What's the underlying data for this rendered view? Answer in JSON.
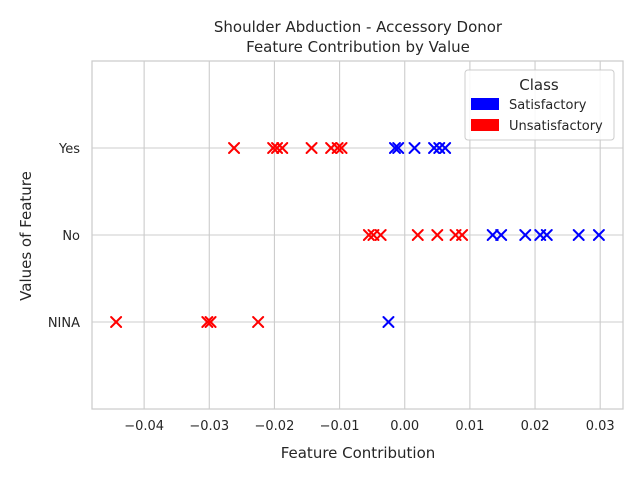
{
  "chart_data": {
    "type": "scatter",
    "title_line1": "Shoulder Abduction - Accessory Donor",
    "title_line2": "Feature Contribution by Value",
    "xlabel": "Feature Contribution",
    "ylabel": "Values of Feature",
    "xlim": [
      -0.048,
      0.0335
    ],
    "xticks": [
      -0.04,
      -0.03,
      -0.02,
      -0.01,
      0.0,
      0.01,
      0.02,
      0.03
    ],
    "xtick_labels": [
      "−0.04",
      "−0.03",
      "−0.02",
      "−0.01",
      "0.00",
      "0.01",
      "0.02",
      "0.03"
    ],
    "categories": [
      "NINA",
      "No",
      "Yes"
    ],
    "ylim": [
      -1,
      3
    ],
    "grid": true,
    "marker": "x",
    "legend": {
      "title": "Class",
      "placement": "top-right",
      "entries": [
        {
          "name": "Satisfactory",
          "color": "#0000ff"
        },
        {
          "name": "Unsatisfactory",
          "color": "#ff0000"
        }
      ]
    },
    "series": [
      {
        "name": "Satisfactory",
        "color": "#0000ff",
        "points": [
          {
            "x": -0.0015,
            "y": "Yes"
          },
          {
            "x": -0.001,
            "y": "Yes"
          },
          {
            "x": 0.0015,
            "y": "Yes"
          },
          {
            "x": 0.0045,
            "y": "Yes"
          },
          {
            "x": 0.0053,
            "y": "Yes"
          },
          {
            "x": 0.0062,
            "y": "Yes"
          },
          {
            "x": 0.0135,
            "y": "No"
          },
          {
            "x": 0.0148,
            "y": "No"
          },
          {
            "x": 0.0185,
            "y": "No"
          },
          {
            "x": 0.0208,
            "y": "No"
          },
          {
            "x": 0.0218,
            "y": "No"
          },
          {
            "x": 0.0267,
            "y": "No"
          },
          {
            "x": 0.0298,
            "y": "No"
          },
          {
            "x": -0.0025,
            "y": "NINA"
          }
        ]
      },
      {
        "name": "Unsatisfactory",
        "color": "#ff0000",
        "points": [
          {
            "x": -0.0262,
            "y": "Yes"
          },
          {
            "x": -0.0202,
            "y": "Yes"
          },
          {
            "x": -0.0196,
            "y": "Yes"
          },
          {
            "x": -0.0188,
            "y": "Yes"
          },
          {
            "x": -0.0143,
            "y": "Yes"
          },
          {
            "x": -0.0113,
            "y": "Yes"
          },
          {
            "x": -0.0103,
            "y": "Yes"
          },
          {
            "x": -0.0097,
            "y": "Yes"
          },
          {
            "x": -0.0055,
            "y": "No"
          },
          {
            "x": -0.0048,
            "y": "No"
          },
          {
            "x": -0.0037,
            "y": "No"
          },
          {
            "x": 0.002,
            "y": "No"
          },
          {
            "x": 0.005,
            "y": "No"
          },
          {
            "x": 0.0078,
            "y": "No"
          },
          {
            "x": 0.0088,
            "y": "No"
          },
          {
            "x": -0.0443,
            "y": "NINA"
          },
          {
            "x": -0.0303,
            "y": "NINA"
          },
          {
            "x": -0.0298,
            "y": "NINA"
          },
          {
            "x": -0.0225,
            "y": "NINA"
          }
        ]
      }
    ]
  }
}
